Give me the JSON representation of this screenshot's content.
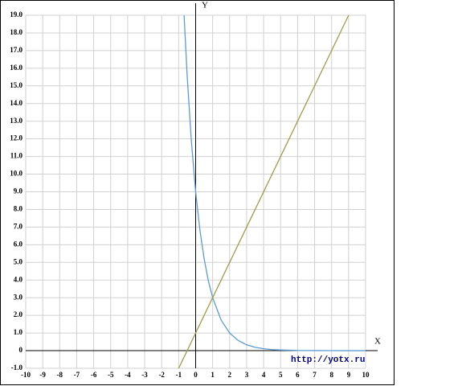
{
  "chart_data": {
    "type": "line",
    "x_label": "X",
    "y_label": "Y",
    "watermark": "http://yotx.ru",
    "xlim": [
      -10,
      10
    ],
    "ylim": [
      -1,
      19
    ],
    "xticks": [
      -10,
      -9,
      -8,
      -7,
      -6,
      -5,
      -4,
      -3,
      -2,
      -1,
      0,
      1,
      2,
      3,
      4,
      5,
      6,
      7,
      8,
      9,
      10
    ],
    "yticks": [
      {
        "value": -1,
        "label": "-1.0"
      },
      0,
      {
        "value": 1,
        "label": "1.0"
      },
      {
        "value": 2,
        "label": "2.0"
      },
      {
        "value": 3,
        "label": "3.0"
      },
      {
        "value": 4,
        "label": "4.0"
      },
      {
        "value": 5,
        "label": "5.0"
      },
      {
        "value": 6,
        "label": "6.0"
      },
      {
        "value": 7,
        "label": "7.0"
      },
      {
        "value": 8,
        "label": "8.0"
      },
      {
        "value": 9,
        "label": "9.0"
      },
      {
        "value": 10,
        "label": "10.0"
      },
      {
        "value": 11,
        "label": "11.0"
      },
      {
        "value": 12,
        "label": "12.0"
      },
      {
        "value": 13,
        "label": "13.0"
      },
      {
        "value": 14,
        "label": "14.0"
      },
      {
        "value": 15,
        "label": "15.0"
      },
      {
        "value": 16,
        "label": "16.0"
      },
      {
        "value": 17,
        "label": "17.0"
      },
      {
        "value": 18,
        "label": "18.0"
      },
      {
        "value": 19,
        "label": "19.0"
      }
    ],
    "grid": true,
    "series": [
      {
        "color": "#5b9bd5",
        "x": [
          -0.68,
          -0.5,
          -0.25,
          0,
          0.25,
          0.5,
          0.75,
          1,
          1.5,
          2,
          2.5,
          3,
          3.5,
          4,
          4.5,
          5,
          6,
          7,
          8,
          9,
          10
        ],
        "values": [
          19.0,
          15.59,
          11.84,
          9,
          6.84,
          5.2,
          3.95,
          3,
          1.73,
          1,
          0.58,
          0.33,
          0.19,
          0.11,
          0.06,
          0.04,
          0.01,
          0.004,
          0.001,
          0,
          0
        ]
      },
      {
        "color": "#9c9c4a",
        "x": [
          -1,
          9
        ],
        "values": [
          -1,
          19
        ]
      }
    ]
  }
}
